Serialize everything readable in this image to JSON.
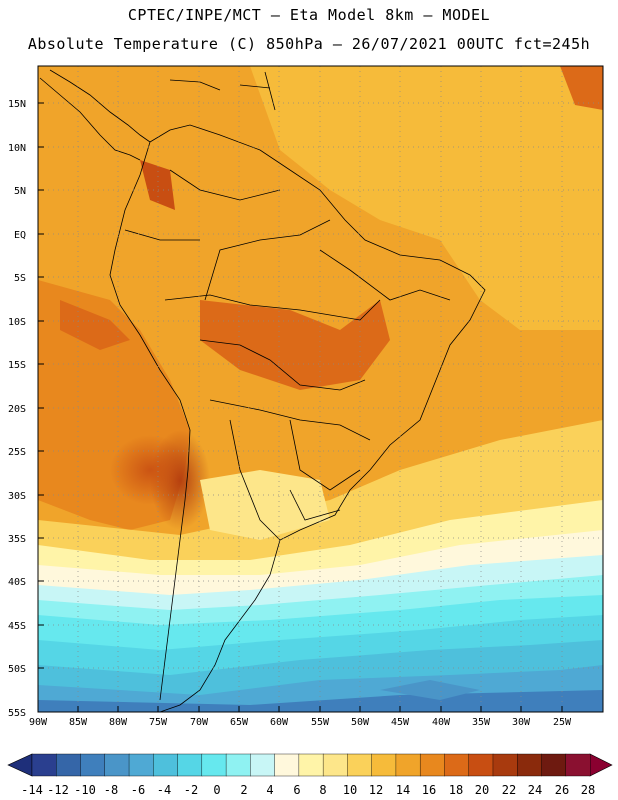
{
  "header": {
    "line1": "CPTEC/INPE/MCT –  Eta Model 8km – MODEL",
    "line2": "Absolute Temperature (C) 850hPa – 26/07/2021 00UTC fct=245h"
  },
  "map": {
    "lat_labels": [
      "15N",
      "10N",
      "5N",
      "EQ",
      "5S",
      "10S",
      "15S",
      "20S",
      "25S",
      "30S",
      "35S",
      "40S",
      "45S",
      "50S",
      "55S"
    ],
    "lon_labels": [
      "90W",
      "85W",
      "80W",
      "75W",
      "70W",
      "65W",
      "60W",
      "55W",
      "50W",
      "45W",
      "40W",
      "35W",
      "30W",
      "25W"
    ]
  },
  "colorbar": {
    "labels": [
      "-14",
      "-12",
      "-10",
      "-8",
      "-6",
      "-4",
      "-2",
      "0",
      "2",
      "4",
      "6",
      "8",
      "10",
      "12",
      "14",
      "16",
      "18",
      "20",
      "22",
      "24",
      "26",
      "28"
    ],
    "colors": [
      "#2a3f8f",
      "#3566a8",
      "#3f7fbc",
      "#4a95c8",
      "#4fa9d4",
      "#4ec0dc",
      "#55d6e6",
      "#66e8ee",
      "#8ff2f2",
      "#c8f6f6",
      "#fff8dc",
      "#fff4a8",
      "#fde68a",
      "#fad15a",
      "#f6bb3a",
      "#f0a42a",
      "#e8881e",
      "#dc6a18",
      "#c84e12",
      "#a83a0e",
      "#8a2a0c",
      "#6e1a10",
      "#8a1030"
    ],
    "under_color": "#1e2f7a",
    "over_color": "#8a0030"
  }
}
